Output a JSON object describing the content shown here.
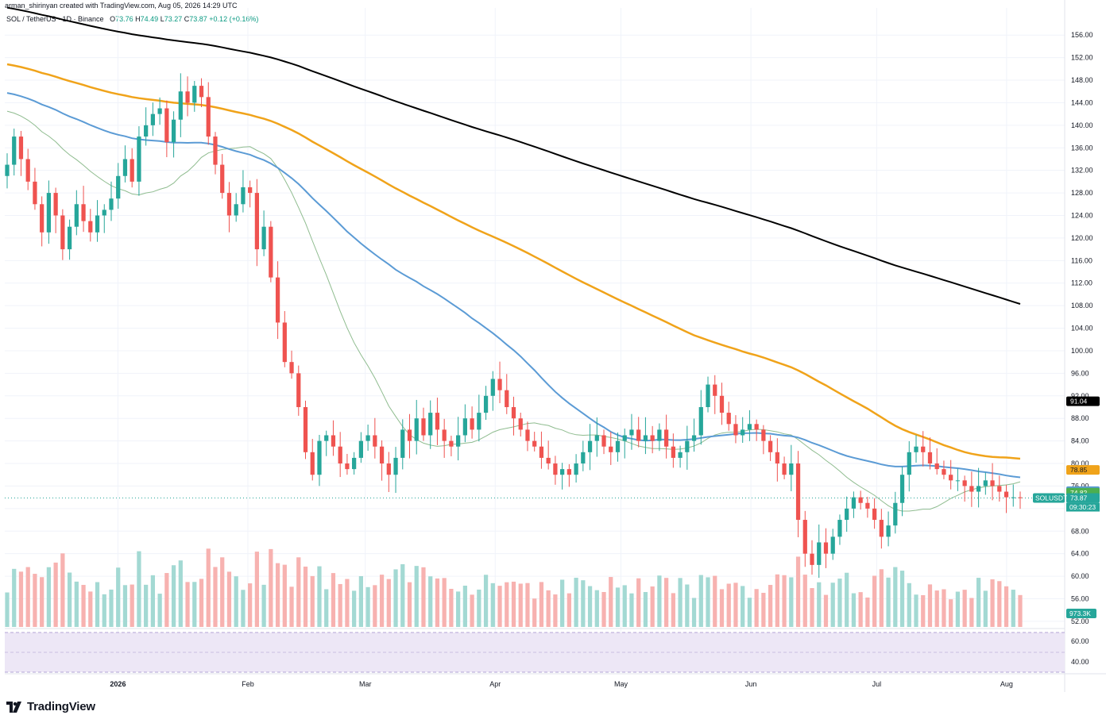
{
  "header": {
    "text": "arman_shirinyan created with TradingView.com, Aug 05, 2026 14:29 UTC"
  },
  "legend": {
    "symbol": "SOL / TetherUS · 1D · Binance",
    "o_label": "O",
    "o": "73.76",
    "h_label": "H",
    "h": "74.49",
    "l_label": "L",
    "l": "73.27",
    "c_label": "C",
    "c": "73.87",
    "change": "+0.12 (+0.16%)"
  },
  "logo": {
    "text": "TradingView"
  },
  "colors": {
    "up": "#26a69a",
    "down": "#ef5350",
    "vol_up": "#a3d9d3",
    "vol_down": "#f7b2b0",
    "ma20": "#8fbc8f",
    "ma50": "#5b9bd5",
    "ma100": "#f0a31a",
    "ma200": "#000000",
    "rsi_band": "#ede7f6"
  },
  "chart_data": {
    "type": "candlestick",
    "y_axis_ticks": [
      "156.00",
      "152.00",
      "148.00",
      "144.00",
      "140.00",
      "136.00",
      "132.00",
      "128.00",
      "124.00",
      "120.00",
      "116.00",
      "112.00",
      "108.00",
      "104.00",
      "100.00",
      "96.00",
      "92.00",
      "88.00",
      "84.00",
      "80.00",
      "76.00",
      "72.00",
      "68.00",
      "64.00",
      "60.00",
      "56.00",
      "52.00"
    ],
    "y_range": [
      51,
      158
    ],
    "x_labels": [
      {
        "label": "2026",
        "date": "2026-01-01"
      },
      {
        "label": "Feb",
        "date": "2026-02-01"
      },
      {
        "label": "Mar",
        "date": "2026-03-01"
      },
      {
        "label": "Apr",
        "date": "2026-04-01"
      },
      {
        "label": "May",
        "date": "2026-05-01"
      },
      {
        "label": "Jun",
        "date": "2026-06-01"
      },
      {
        "label": "Jul",
        "date": "2026-07-01"
      },
      {
        "label": "Aug",
        "date": "2026-08-01"
      }
    ],
    "x_range": [
      "2025-12-05",
      "2026-08-05"
    ],
    "price_close": [
      133,
      138,
      134,
      130,
      126,
      121,
      128,
      124,
      118,
      122,
      126,
      123,
      121,
      124,
      125,
      127,
      131,
      134,
      130,
      138,
      140,
      142,
      143,
      137,
      141,
      146,
      144,
      147,
      145,
      138,
      133,
      128,
      124,
      126,
      129,
      128,
      118,
      122,
      113,
      105,
      98,
      96,
      90,
      82,
      78,
      84,
      85,
      83,
      80,
      79,
      81,
      84,
      85,
      83,
      80,
      78,
      81,
      86,
      84,
      88,
      85,
      89,
      86,
      84,
      83,
      85,
      88,
      86,
      89,
      92,
      95,
      93,
      90,
      88,
      86,
      84,
      83,
      81,
      80,
      78,
      79,
      78,
      80,
      82,
      84,
      85,
      83,
      82,
      84,
      85,
      86,
      84,
      85,
      84,
      86,
      83,
      81,
      82,
      84,
      85,
      90,
      94,
      92,
      89,
      87,
      85,
      86,
      87,
      86,
      84,
      82,
      80,
      78,
      80,
      70,
      64,
      62,
      66,
      64,
      67,
      70,
      72,
      74,
      73,
      72,
      70,
      67,
      69,
      73,
      78,
      82,
      83,
      82,
      80,
      79,
      78,
      77,
      77,
      76,
      75,
      76,
      77,
      76,
      75,
      74,
      74,
      73.87
    ],
    "series": [
      {
        "name": "MA 20",
        "end_value": 74.82
      },
      {
        "name": "MA 50",
        "end_value": 75.1
      },
      {
        "name": "MA 100",
        "end_value": 78.85
      },
      {
        "name": "MA 200",
        "end_value": 91.04
      }
    ],
    "price_tags": [
      {
        "label": "91.04",
        "value": 91.04,
        "bg": "#000000",
        "fg": "#ffffff"
      },
      {
        "label": "78.85",
        "value": 78.85,
        "bg": "#f0a31a",
        "fg": "#131722"
      },
      {
        "label": "75.10",
        "value": 75.1,
        "bg": "#5b9bd5",
        "fg": "#ffffff"
      },
      {
        "label": "74.82",
        "value": 74.82,
        "bg": "#4caf50",
        "fg": "#ffffff"
      },
      {
        "label": "73.87",
        "value": 73.87,
        "bg": "#26a69a",
        "fg": "#ffffff"
      }
    ],
    "symbol_tag": "SOLUSDT",
    "countdown": "09:30:23",
    "volume_tag": "973.3K",
    "rsi_axis_ticks": [
      "60.00",
      "40.00"
    ]
  }
}
